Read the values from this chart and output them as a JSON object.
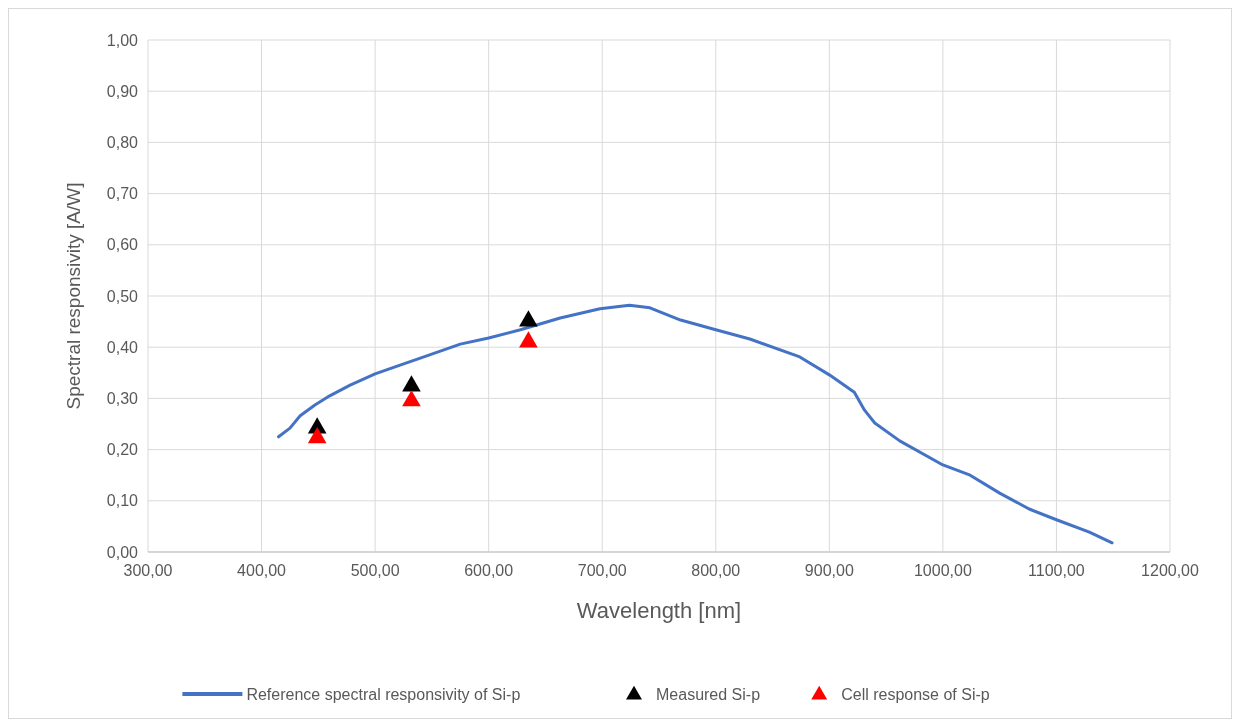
{
  "chart_data": {
    "type": "line",
    "xlabel": "Wavelength [nm]",
    "ylabel": "Spectral responsivity [A/W]",
    "xlim": [
      300,
      1200
    ],
    "ylim": [
      0,
      1
    ],
    "xticks": [
      {
        "value": 300,
        "label": "300,00"
      },
      {
        "value": 400,
        "label": "400,00"
      },
      {
        "value": 500,
        "label": "500,00"
      },
      {
        "value": 600,
        "label": "600,00"
      },
      {
        "value": 700,
        "label": "700,00"
      },
      {
        "value": 800,
        "label": "800,00"
      },
      {
        "value": 900,
        "label": "900,00"
      },
      {
        "value": 1000,
        "label": "1000,00"
      },
      {
        "value": 1100,
        "label": "1100,00"
      },
      {
        "value": 1200,
        "label": "1200,00"
      }
    ],
    "yticks": [
      {
        "value": 0,
        "label": "0,00"
      },
      {
        "value": 0.1,
        "label": "0,10"
      },
      {
        "value": 0.2,
        "label": "0,20"
      },
      {
        "value": 0.3,
        "label": "0,30"
      },
      {
        "value": 0.4,
        "label": "0,40"
      },
      {
        "value": 0.5,
        "label": "0,50"
      },
      {
        "value": 0.6,
        "label": "0,60"
      },
      {
        "value": 0.7,
        "label": "0,70"
      },
      {
        "value": 0.8,
        "label": "0,80"
      },
      {
        "value": 0.9,
        "label": "0,90"
      },
      {
        "value": 1,
        "label": "1,00"
      }
    ],
    "grid": true,
    "legend": "bottom",
    "series": [
      {
        "name": "Reference spectral responsivity of Si-p",
        "color": "#4472c4",
        "marker": "none",
        "line_style": "solid",
        "x": [
          415,
          425,
          434,
          447,
          460,
          478,
          500,
          522,
          548,
          575,
          600,
          628,
          663,
          698,
          724,
          742,
          769,
          800,
          830,
          874,
          900,
          922,
          931,
          940,
          962,
          1000,
          1024,
          1050,
          1076,
          1100,
          1129,
          1149
        ],
        "values": [
          0.225,
          0.242,
          0.266,
          0.287,
          0.305,
          0.326,
          0.348,
          0.365,
          0.385,
          0.406,
          0.418,
          0.434,
          0.457,
          0.475,
          0.482,
          0.477,
          0.453,
          0.434,
          0.416,
          0.381,
          0.346,
          0.312,
          0.277,
          0.252,
          0.217,
          0.17,
          0.15,
          0.115,
          0.084,
          0.063,
          0.039,
          0.018
        ]
      },
      {
        "name": "Measured Si-p",
        "type": "scatter",
        "color": "#000000",
        "marker": "triangle",
        "x": [
          449,
          532,
          635
        ],
        "values": [
          0.242,
          0.324,
          0.451
        ]
      },
      {
        "name": "Cell response of Si-p",
        "type": "scatter",
        "color": "#ff0000",
        "marker": "triangle",
        "x": [
          449,
          532,
          635
        ],
        "values": [
          0.223,
          0.295,
          0.41
        ]
      }
    ]
  }
}
